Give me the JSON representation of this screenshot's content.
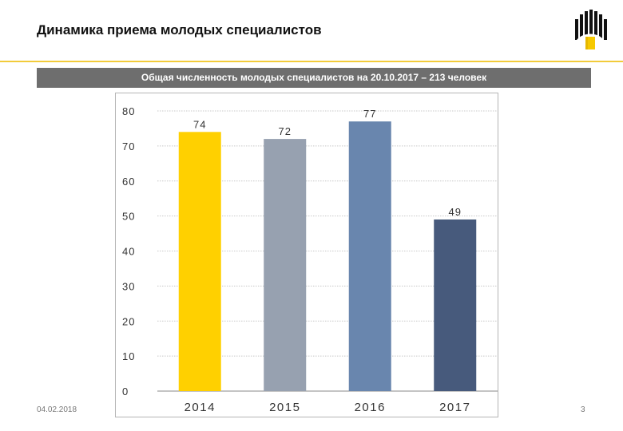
{
  "slide": {
    "title": "Динамика приема молодых специалистов",
    "banner": "Общая численность молодых специалистов на 20.10.2017 – 213 человек",
    "footer_date": "04.02.2018",
    "page_number": "3"
  },
  "colors": {
    "accent_rule": "#f2cb3a",
    "banner_bg": "#6e6e6e",
    "logo_yellow": "#f6c900"
  },
  "logo": {
    "icon": "company-logo-icon"
  },
  "chart_data": {
    "type": "bar",
    "categories": [
      "2014",
      "2015",
      "2016",
      "2017"
    ],
    "values": [
      74,
      72,
      77,
      49
    ],
    "data_labels": [
      "74",
      "72",
      "77",
      "49"
    ],
    "bar_colors": [
      "#ffd000",
      "#97a1b0",
      "#6986ae",
      "#475a7c"
    ],
    "title": "",
    "xlabel": "",
    "ylabel": "",
    "ylim": [
      0,
      80
    ],
    "yticks": [
      0,
      10,
      20,
      30,
      40,
      50,
      60,
      70,
      80
    ],
    "grid": true,
    "legend": "none"
  }
}
